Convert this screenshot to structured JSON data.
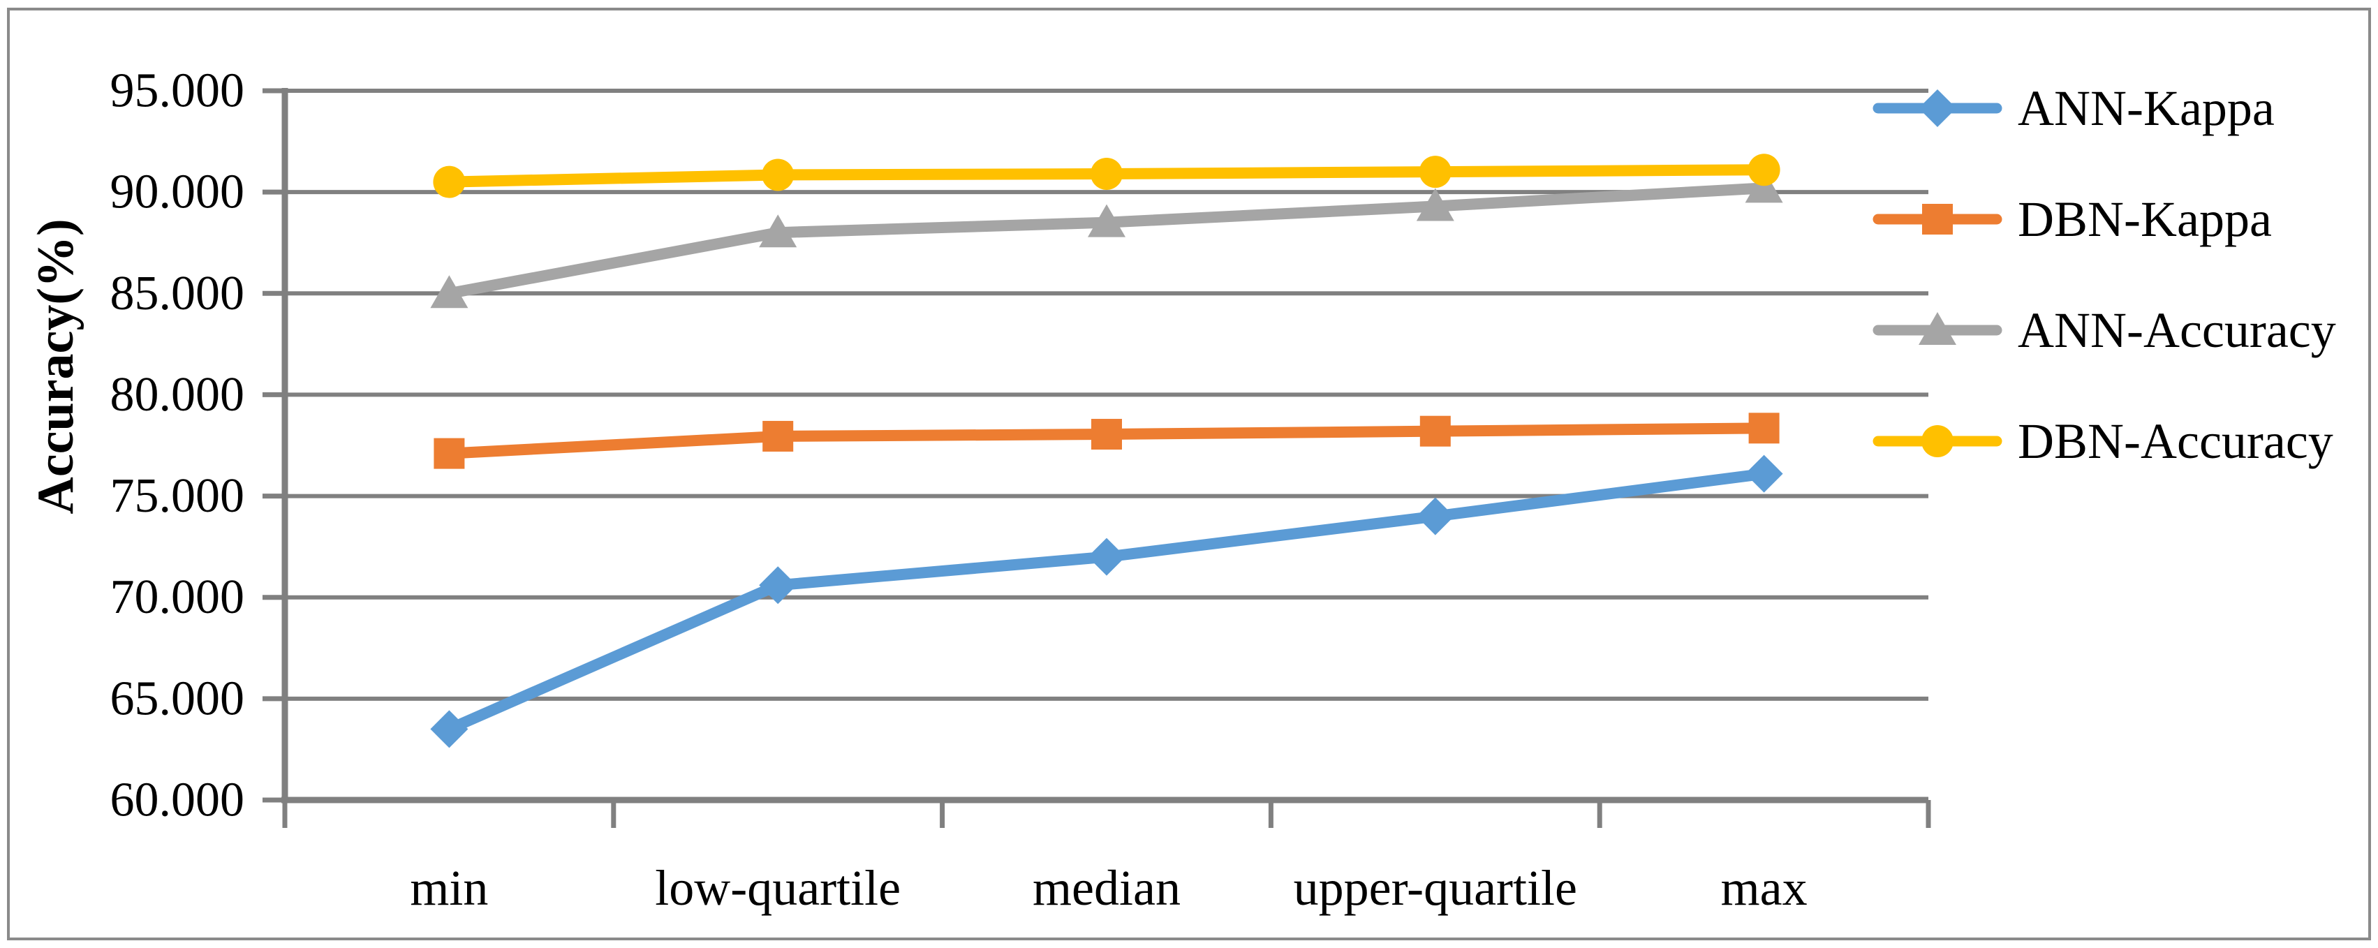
{
  "figure": {
    "background": "#ffffff",
    "border_color": "#8a8a8a",
    "gridline_color": "#808080",
    "axis_color": "#808080"
  },
  "chart_data": {
    "type": "line",
    "title": "",
    "categories": [
      "min",
      "low-quartile",
      "median",
      "upper-quartile",
      "max"
    ],
    "series": [
      {
        "name": "ANN-Kappa",
        "color": "#5B9BD5",
        "marker": "diamond",
        "values": [
          63.5,
          70.6,
          72.0,
          74.0,
          76.1
        ]
      },
      {
        "name": "DBN-Kappa",
        "color": "#ED7D31",
        "marker": "square",
        "values": [
          77.1,
          77.95,
          78.05,
          78.2,
          78.35
        ]
      },
      {
        "name": "ANN-Accuracy",
        "color": "#A5A5A5",
        "marker": "triangle",
        "values": [
          85.0,
          88.0,
          88.5,
          89.3,
          90.2
        ]
      },
      {
        "name": "DBN-Accuracy",
        "color": "#FFC000",
        "marker": "circle",
        "values": [
          90.5,
          90.85,
          90.9,
          91.0,
          91.1
        ]
      }
    ],
    "xlabel": "",
    "ylabel": "Accuracy(%)",
    "ylim": [
      60,
      95
    ],
    "ytick_step": 5,
    "ytick_labels": [
      "60.000",
      "65.000",
      "70.000",
      "75.000",
      "80.000",
      "85.000",
      "90.000",
      "95.000"
    ],
    "grid": true,
    "legend_position": "right-top",
    "legend_entries": [
      "ANN-Kappa",
      "DBN-Kappa",
      "ANN-Accuracy",
      "DBN-Accuracy"
    ]
  }
}
